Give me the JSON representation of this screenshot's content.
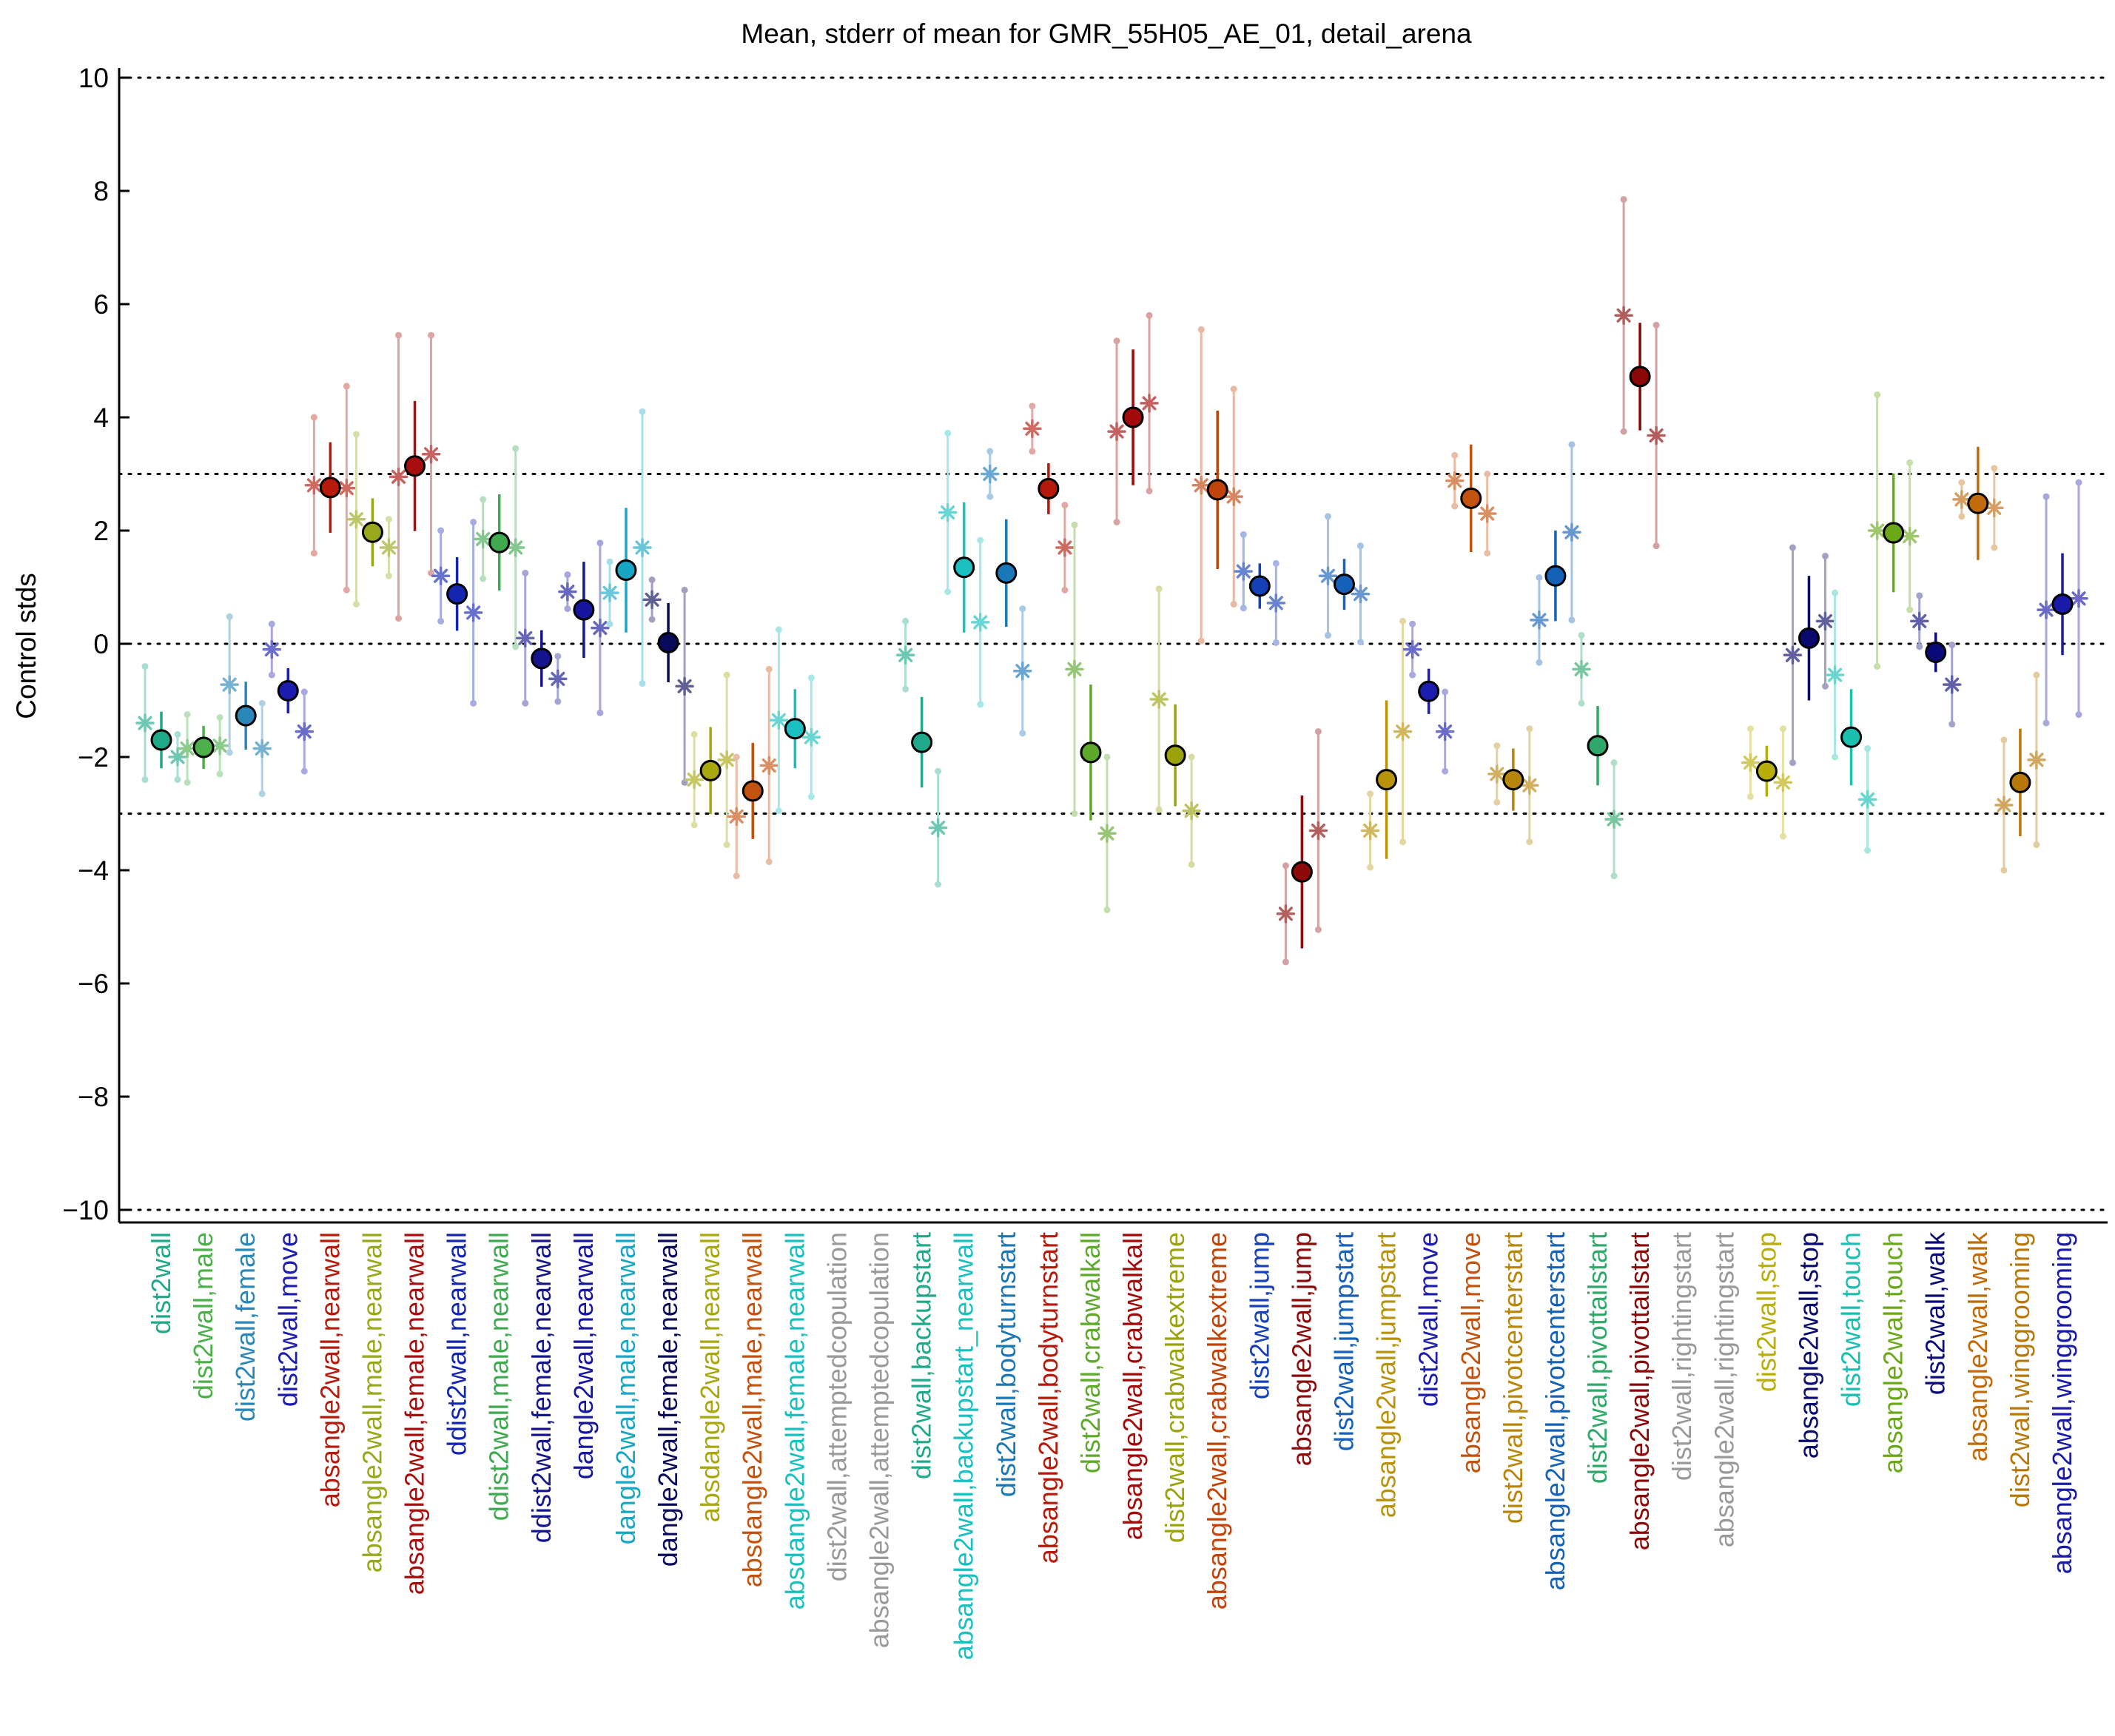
{
  "chart_data": {
    "type": "scatter",
    "title": "Mean, stderr of mean for GMR_55H05_AE_01, detail_arena",
    "xlabel": "",
    "ylabel": "Control stds",
    "ylim": [
      -10,
      10
    ],
    "yticks": [
      -10,
      -8,
      -6,
      -4,
      -2,
      0,
      2,
      4,
      6,
      8,
      10
    ],
    "reference_lines": [
      -10,
      -3,
      0,
      3,
      10
    ],
    "grid": false,
    "marker_legend": "circle = mean with stderr bar; asterisks = individual experiment means with stderr bars",
    "stats": [
      {
        "label": "dist2wall",
        "color": "#1fa98a",
        "mean": -1.7,
        "err": 0.5,
        "exps": [
          {
            "v": -1.4,
            "e": 1.0
          },
          {
            "v": -2.0,
            "e": 0.4
          }
        ]
      },
      {
        "label": "dist2wall,male",
        "color": "#4daf4a",
        "mean": -1.83,
        "err": 0.38,
        "exps": [
          {
            "v": -1.85,
            "e": 0.6
          },
          {
            "v": -1.8,
            "e": 0.5
          }
        ]
      },
      {
        "label": "dist2wall,female",
        "color": "#2b87b8",
        "mean": -1.27,
        "err": 0.6,
        "exps": [
          {
            "v": -0.72,
            "e": 1.2
          },
          {
            "v": -1.85,
            "e": 0.8
          }
        ]
      },
      {
        "label": "dist2wall,move",
        "color": "#1c1cae",
        "mean": -0.83,
        "err": 0.4,
        "exps": [
          {
            "v": -0.1,
            "e": 0.45
          },
          {
            "v": -1.55,
            "e": 0.7
          }
        ]
      },
      {
        "label": "absangle2wall,nearwall",
        "color": "#b61a0a",
        "mean": 2.76,
        "err": 0.8,
        "exps": [
          {
            "v": 2.8,
            "e": 1.2
          },
          {
            "v": 2.75,
            "e": 1.8
          }
        ]
      },
      {
        "label": "absangle2wall,male,nearwall",
        "color": "#98a81a",
        "mean": 1.97,
        "err": 0.6,
        "exps": [
          {
            "v": 2.2,
            "e": 1.5
          },
          {
            "v": 1.7,
            "e": 0.5
          }
        ]
      },
      {
        "label": "absangle2wall,female,nearwall",
        "color": "#a80e0e",
        "mean": 3.14,
        "err": 1.15,
        "exps": [
          {
            "v": 2.95,
            "e": 2.5
          },
          {
            "v": 3.35,
            "e": 2.1
          }
        ]
      },
      {
        "label": "ddist2wall,nearwall",
        "color": "#1426b0",
        "mean": 0.88,
        "err": 0.65,
        "exps": [
          {
            "v": 1.2,
            "e": 0.8
          },
          {
            "v": 0.55,
            "e": 1.6
          }
        ]
      },
      {
        "label": "ddist2wall,male,nearwall",
        "color": "#3faa4f",
        "mean": 1.79,
        "err": 0.85,
        "exps": [
          {
            "v": 1.85,
            "e": 0.7
          },
          {
            "v": 1.7,
            "e": 1.75
          }
        ]
      },
      {
        "label": "ddist2wall,female,nearwall",
        "color": "#14148e",
        "mean": -0.26,
        "err": 0.5,
        "exps": [
          {
            "v": 0.1,
            "e": 1.15
          },
          {
            "v": -0.62,
            "e": 0.4
          }
        ]
      },
      {
        "label": "dangle2wall,nearwall",
        "color": "#15159e",
        "mean": 0.6,
        "err": 0.85,
        "exps": [
          {
            "v": 0.92,
            "e": 0.3
          },
          {
            "v": 0.28,
            "e": 1.5
          }
        ]
      },
      {
        "label": "dangle2wall,male,nearwall",
        "color": "#17a7c4",
        "mean": 1.3,
        "err": 1.1,
        "exps": [
          {
            "v": 0.9,
            "e": 0.55
          },
          {
            "v": 1.7,
            "e": 2.4
          }
        ]
      },
      {
        "label": "dangle2wall,female,nearwall",
        "color": "#0a0a5a",
        "mean": 0.02,
        "err": 0.7,
        "exps": [
          {
            "v": 0.78,
            "e": 0.35
          },
          {
            "v": -0.75,
            "e": 1.7
          }
        ]
      },
      {
        "label": "absdangle2wall,nearwall",
        "color": "#a8a80e",
        "mean": -2.24,
        "err": 0.77,
        "exps": [
          {
            "v": -2.4,
            "e": 0.8
          },
          {
            "v": -2.05,
            "e": 1.5
          }
        ]
      },
      {
        "label": "absdangle2wall,male,nearwall",
        "color": "#c4520f",
        "mean": -2.6,
        "err": 0.85,
        "exps": [
          {
            "v": -3.05,
            "e": 1.05
          },
          {
            "v": -2.15,
            "e": 1.7
          }
        ]
      },
      {
        "label": "absdangle2wall,female,nearwall",
        "color": "#1abfbf",
        "mean": -1.5,
        "err": 0.7,
        "exps": [
          {
            "v": -1.35,
            "e": 1.6
          },
          {
            "v": -1.65,
            "e": 1.05
          }
        ]
      },
      {
        "label": "dist2wall,attemptedcopulation",
        "color": "#999999",
        "mean": null,
        "err": null,
        "exps": []
      },
      {
        "label": "absangle2wall,attemptedcopulation",
        "color": "#999999",
        "mean": null,
        "err": null,
        "exps": []
      },
      {
        "label": "dist2wall,backupstart",
        "color": "#1fa98a",
        "mean": -1.74,
        "err": 0.8,
        "exps": [
          {
            "v": -0.2,
            "e": 0.6
          },
          {
            "v": -3.25,
            "e": 1.0
          }
        ]
      },
      {
        "label": "absangle2wall,backupstart_nearwall",
        "color": "#1abfbf",
        "mean": 1.35,
        "err": 1.15,
        "exps": [
          {
            "v": 2.32,
            "e": 1.4
          },
          {
            "v": 0.38,
            "e": 1.45
          }
        ]
      },
      {
        "label": "dist2wall,bodyturnstart",
        "color": "#1a78b8",
        "mean": 1.25,
        "err": 0.95,
        "exps": [
          {
            "v": 3.0,
            "e": 0.4
          },
          {
            "v": -0.48,
            "e": 1.1
          }
        ]
      },
      {
        "label": "absangle2wall,bodyturnstart",
        "color": "#b41a0a",
        "mean": 2.74,
        "err": 0.45,
        "exps": [
          {
            "v": 3.8,
            "e": 0.4
          },
          {
            "v": 1.7,
            "e": 0.75
          }
        ]
      },
      {
        "label": "dist2wall,crabwalkall",
        "color": "#5ea82a",
        "mean": -1.92,
        "err": 1.2,
        "exps": [
          {
            "v": -0.45,
            "e": 2.55
          },
          {
            "v": -3.35,
            "e": 1.35
          }
        ]
      },
      {
        "label": "absangle2wall,crabwalkall",
        "color": "#a20a0a",
        "mean": 4.0,
        "err": 1.2,
        "exps": [
          {
            "v": 3.75,
            "e": 1.6
          },
          {
            "v": 4.25,
            "e": 1.55
          }
        ]
      },
      {
        "label": "dist2wall,crabwalkextreme",
        "color": "#9aa30a",
        "mean": -1.97,
        "err": 0.9,
        "exps": [
          {
            "v": -0.98,
            "e": 1.95
          },
          {
            "v": -2.95,
            "e": 0.95
          }
        ]
      },
      {
        "label": "absangle2wall,crabwalkextreme",
        "color": "#c0440a",
        "mean": 2.72,
        "err": 1.4,
        "exps": [
          {
            "v": 2.8,
            "e": 2.75
          },
          {
            "v": 2.6,
            "e": 1.9
          }
        ]
      },
      {
        "label": "dist2wall,jump",
        "color": "#1540b8",
        "mean": 1.02,
        "err": 0.4,
        "exps": [
          {
            "v": 1.28,
            "e": 0.65
          },
          {
            "v": 0.72,
            "e": 0.7
          }
        ]
      },
      {
        "label": "absangle2wall,jump",
        "color": "#8c0a0a",
        "mean": -4.03,
        "err": 1.35,
        "exps": [
          {
            "v": -4.77,
            "e": 0.85
          },
          {
            "v": -3.3,
            "e": 1.75
          }
        ]
      },
      {
        "label": "dist2wall,jumpstart",
        "color": "#1560b8",
        "mean": 1.05,
        "err": 0.45,
        "exps": [
          {
            "v": 1.2,
            "e": 1.05
          },
          {
            "v": 0.88,
            "e": 0.85
          }
        ]
      },
      {
        "label": "absangle2wall,jumpstart",
        "color": "#b8920a",
        "mean": -2.4,
        "err": 1.4,
        "exps": [
          {
            "v": -3.3,
            "e": 0.65
          },
          {
            "v": -1.55,
            "e": 1.95
          }
        ]
      },
      {
        "label": "dist2wall,move",
        "color": "#1c1cae",
        "mean": -0.84,
        "err": 0.4,
        "exps": [
          {
            "v": -0.1,
            "e": 0.45
          },
          {
            "v": -1.55,
            "e": 0.7
          }
        ]
      },
      {
        "label": "absangle2wall,move",
        "color": "#c4520f",
        "mean": 2.57,
        "err": 0.95,
        "exps": [
          {
            "v": 2.88,
            "e": 0.45
          },
          {
            "v": 2.3,
            "e": 0.7
          }
        ]
      },
      {
        "label": "dist2wall,pivotcenterstart",
        "color": "#b8860b",
        "mean": -2.4,
        "err": 0.55,
        "exps": [
          {
            "v": -2.3,
            "e": 0.5
          },
          {
            "v": -2.5,
            "e": 1.0
          }
        ]
      },
      {
        "label": "absangle2wall,pivotcenterstart",
        "color": "#1462b8",
        "mean": 1.2,
        "err": 0.8,
        "exps": [
          {
            "v": 0.42,
            "e": 0.75
          },
          {
            "v": 1.97,
            "e": 1.55
          }
        ]
      },
      {
        "label": "dist2wall,pivottailstart",
        "color": "#2fa86a",
        "mean": -1.8,
        "err": 0.7,
        "exps": [
          {
            "v": -0.45,
            "e": 0.6
          },
          {
            "v": -3.1,
            "e": 1.0
          }
        ]
      },
      {
        "label": "absangle2wall,pivottailstart",
        "color": "#8a0808",
        "mean": 4.72,
        "err": 0.95,
        "exps": [
          {
            "v": 5.8,
            "e": 2.05
          },
          {
            "v": 3.68,
            "e": 1.95
          }
        ]
      },
      {
        "label": "dist2wall,rightingstart",
        "color": "#999999",
        "mean": null,
        "err": null,
        "exps": []
      },
      {
        "label": "absangle2wall,rightingstart",
        "color": "#999999",
        "mean": null,
        "err": null,
        "exps": []
      },
      {
        "label": "dist2wall,stop",
        "color": "#b8ae0a",
        "mean": -2.25,
        "err": 0.45,
        "exps": [
          {
            "v": -2.1,
            "e": 0.6
          },
          {
            "v": -2.45,
            "e": 0.95
          }
        ]
      },
      {
        "label": "absangle2wall,stop",
        "color": "#0a0a6e",
        "mean": 0.1,
        "err": 1.1,
        "exps": [
          {
            "v": -0.2,
            "e": 1.9
          },
          {
            "v": 0.4,
            "e": 1.15
          }
        ]
      },
      {
        "label": "dist2wall,touch",
        "color": "#1abfb0",
        "mean": -1.65,
        "err": 0.85,
        "exps": [
          {
            "v": -0.55,
            "e": 1.45
          },
          {
            "v": -2.75,
            "e": 0.9
          }
        ]
      },
      {
        "label": "absangle2wall,touch",
        "color": "#6aa81a",
        "mean": 1.96,
        "err": 1.05,
        "exps": [
          {
            "v": 2.0,
            "e": 2.4
          },
          {
            "v": 1.9,
            "e": 1.3
          }
        ]
      },
      {
        "label": "dist2wall,walk",
        "color": "#0a0a7a",
        "mean": -0.15,
        "err": 0.35,
        "exps": [
          {
            "v": 0.4,
            "e": 0.45
          },
          {
            "v": -0.72,
            "e": 0.7
          }
        ]
      },
      {
        "label": "absangle2wall,walk",
        "color": "#c06a0a",
        "mean": 2.48,
        "err": 1.0,
        "exps": [
          {
            "v": 2.55,
            "e": 0.3
          },
          {
            "v": 2.4,
            "e": 0.7
          }
        ]
      },
      {
        "label": "dist2wall,winggrooming",
        "color": "#b8780a",
        "mean": -2.45,
        "err": 0.95,
        "exps": [
          {
            "v": -2.85,
            "e": 1.15
          },
          {
            "v": -2.05,
            "e": 1.5
          }
        ]
      },
      {
        "label": "absangle2wall,winggrooming",
        "color": "#1a1aa8",
        "mean": 0.7,
        "err": 0.9,
        "exps": [
          {
            "v": 0.6,
            "e": 2.0
          },
          {
            "v": 0.8,
            "e": 2.05
          }
        ]
      }
    ]
  }
}
